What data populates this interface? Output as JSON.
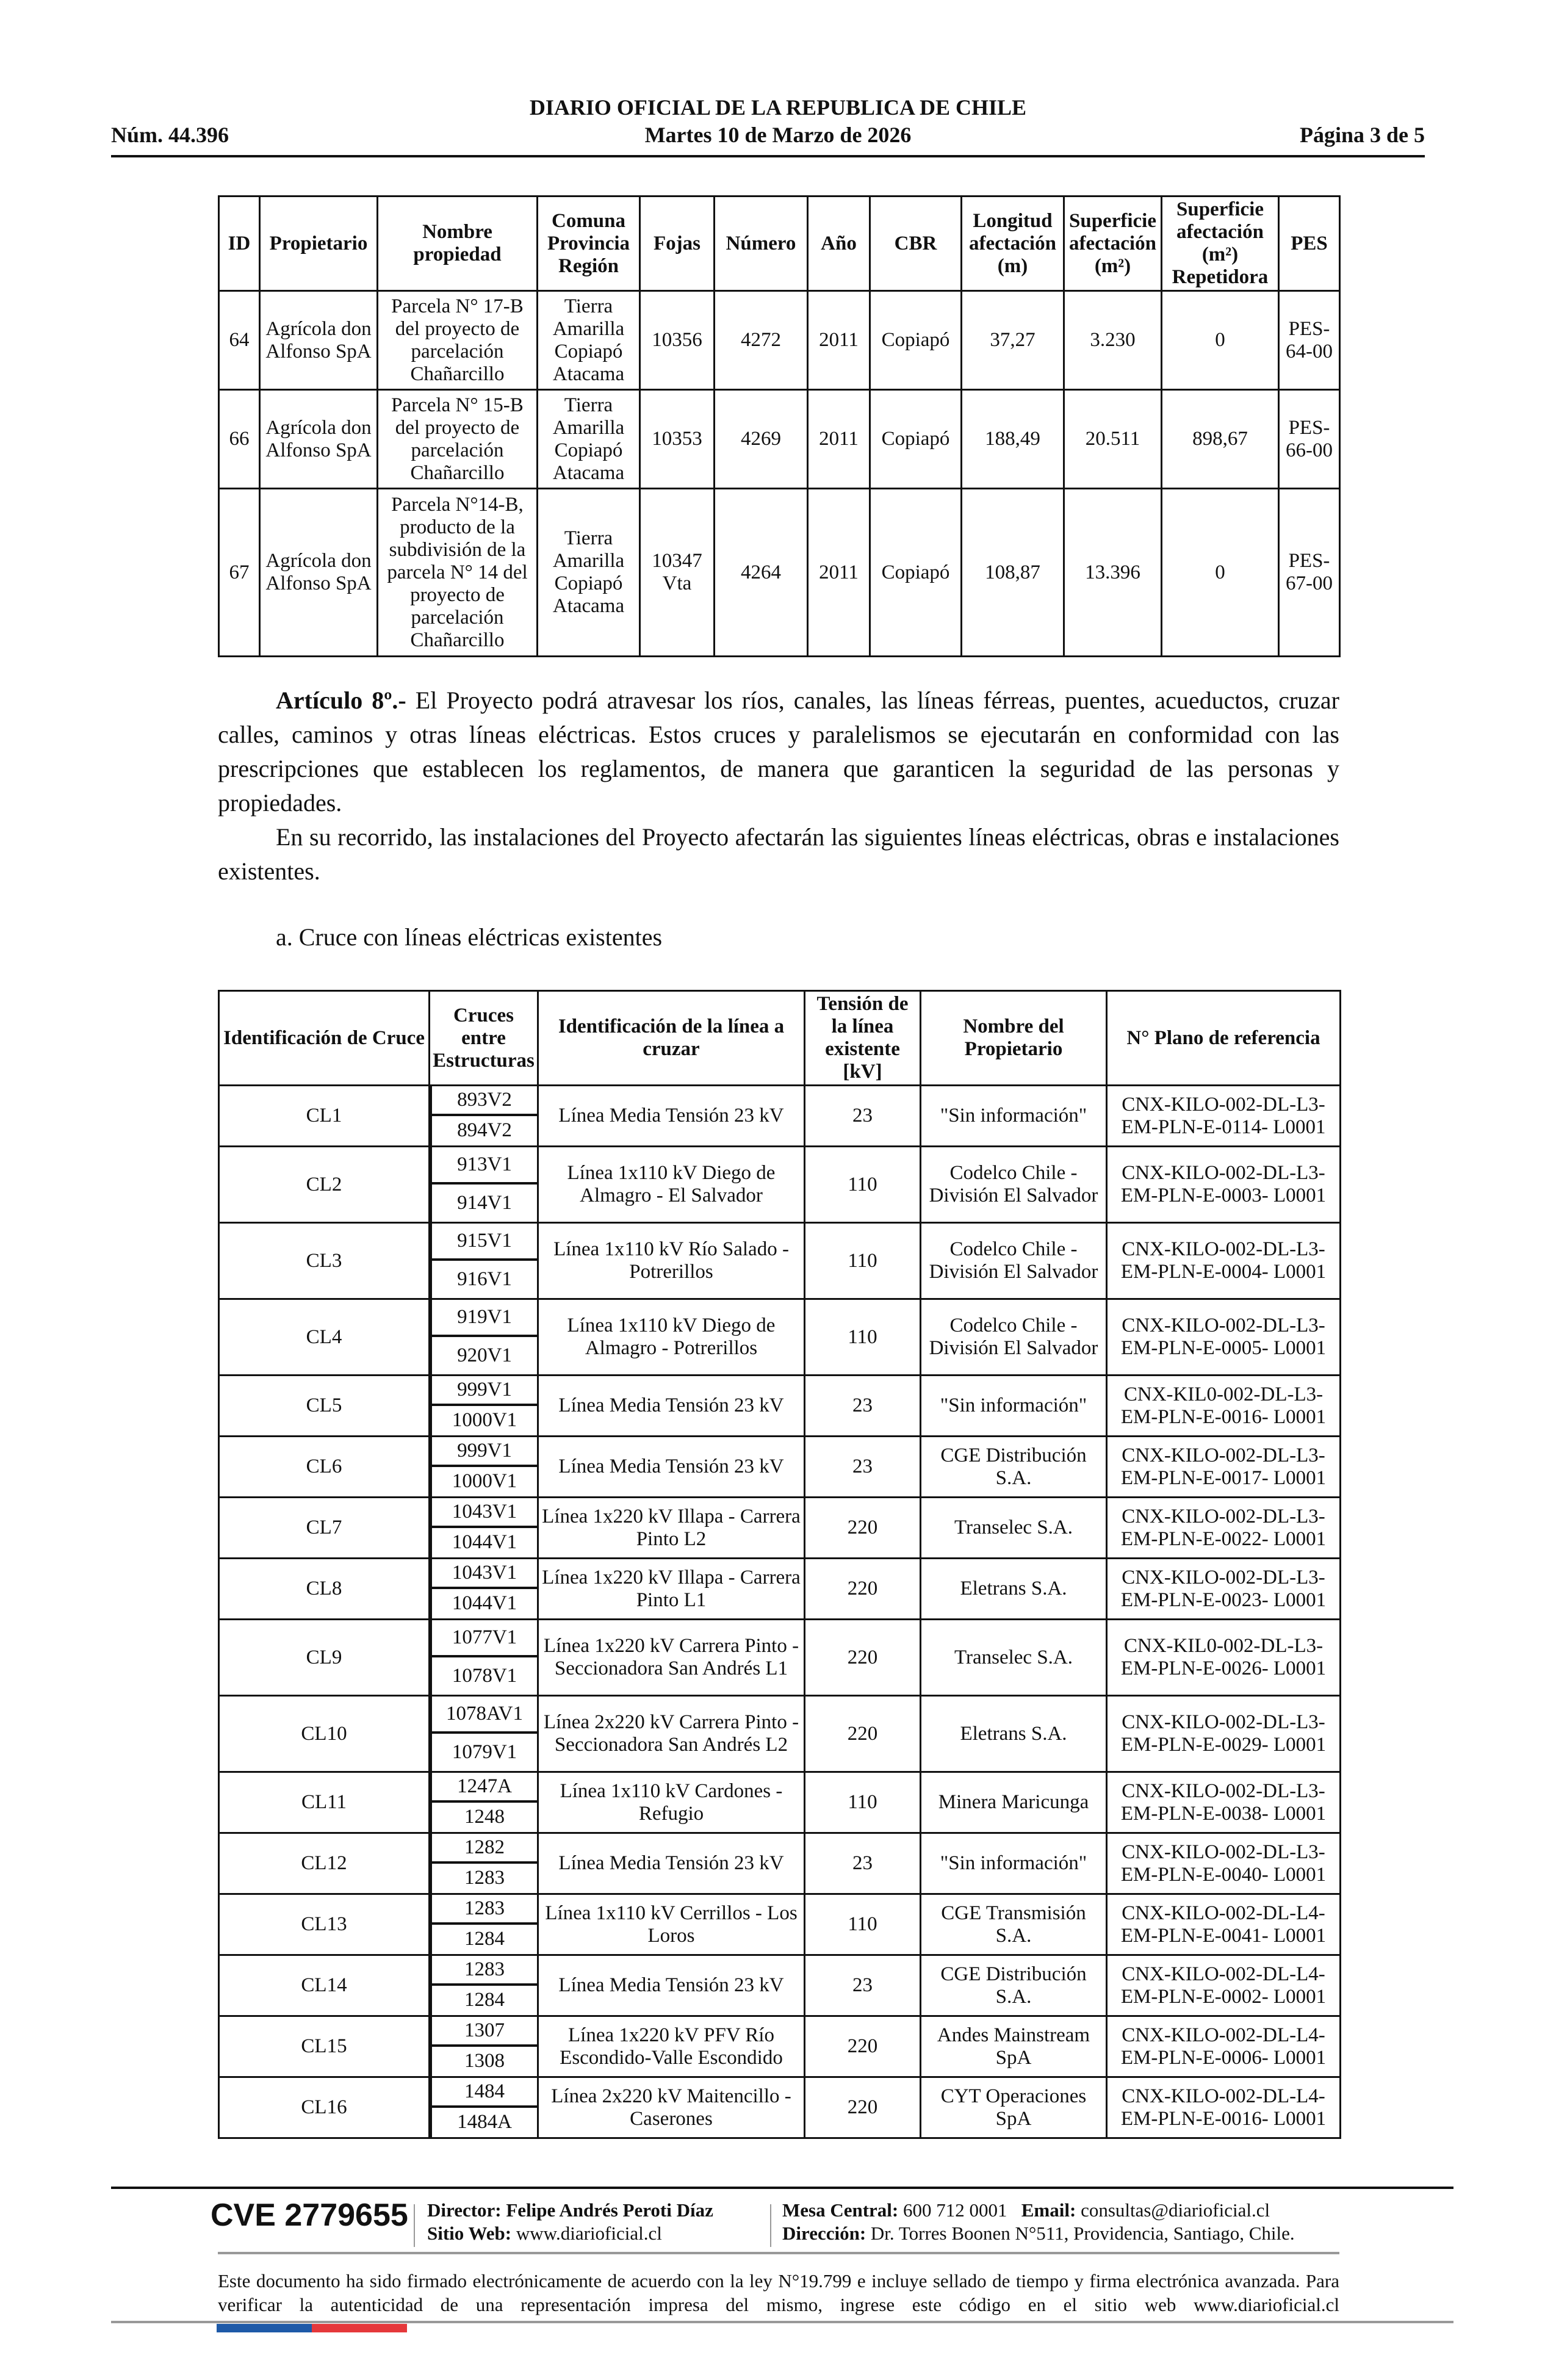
{
  "header": {
    "title": "DIARIO OFICIAL DE LA REPUBLICA DE CHILE",
    "number": "Núm. 44.396",
    "date": "Martes 10 de Marzo de 2026",
    "page": "Página 3 de 5"
  },
  "table1": {
    "headers": [
      "ID",
      "Propietario",
      "Nombre propiedad",
      "Comuna Provincia Región",
      "Fojas",
      "Número",
      "Año",
      "CBR",
      "Longitud afectación (m)",
      "Superficie afectación (m²)",
      "Superficie afectación (m²) Repetidora",
      "PES"
    ],
    "rows": [
      [
        "64",
        "Agrícola don Alfonso SpA",
        "Parcela N° 17-B del proyecto de parcelación Chañarcillo",
        "Tierra Amarilla Copiapó Atacama",
        "10356",
        "4272",
        "2011",
        "Copiapó",
        "37,27",
        "3.230",
        "0",
        "PES-64-00"
      ],
      [
        "66",
        "Agrícola don Alfonso SpA",
        "Parcela N° 15-B del proyecto de parcelación Chañarcillo",
        "Tierra Amarilla Copiapó Atacama",
        "10353",
        "4269",
        "2011",
        "Copiapó",
        "188,49",
        "20.511",
        "898,67",
        "PES-66-00"
      ],
      [
        "67",
        "Agrícola don Alfonso SpA",
        "Parcela N°14-B, producto de la subdivisión de la parcela N° 14 del proyecto de parcelación Chañarcillo",
        "Tierra Amarilla Copiapó Atacama",
        "10347 Vta",
        "4264",
        "2011",
        "Copiapó",
        "108,87",
        "13.396",
        "0",
        "PES-67-00"
      ]
    ]
  },
  "article": {
    "heading": "Artículo 8º.-",
    "p1": " El Proyecto podrá atravesar los ríos, canales, las líneas férreas, puentes, acueductos, cruzar calles, caminos y otras líneas eléctricas. Estos cruces y paralelismos se ejecutarán en conformidad con las prescripciones que establecen los reglamentos, de manera que garanticen la seguridad de las personas y propiedades.",
    "p2": "En su recorrido, las instalaciones del Proyecto afectarán las siguientes líneas eléctricas, obras e instalaciones existentes.",
    "subheading": "a. Cruce con líneas eléctricas existentes"
  },
  "table2": {
    "headers": [
      "Identificación de Cruce",
      "Cruces entre Estructuras",
      "Identificación de la línea a cruzar",
      "Tensión de la línea existente [kV]",
      "Nombre del Propietario",
      "N° Plano de referencia"
    ],
    "rows": [
      {
        "id": "CL1",
        "s1": "893V2",
        "s2": "894V2",
        "line": "Línea Media Tensión 23 kV",
        "kv": "23",
        "owner": "\"Sin información\"",
        "plan": "CNX-KILO-002-DL-L3-EM-PLN-E-0114- L0001"
      },
      {
        "id": "CL2",
        "s1": "913V1",
        "s2": "914V1",
        "line": "Línea 1x110 kV Diego de Almagro - El Salvador",
        "kv": "110",
        "owner": "Codelco Chile - División El Salvador",
        "plan": "CNX-KILO-002-DL-L3-EM-PLN-E-0003- L0001"
      },
      {
        "id": "CL3",
        "s1": "915V1",
        "s2": "916V1",
        "line": "Línea 1x110 kV Río Salado - Potrerillos",
        "kv": "110",
        "owner": "Codelco Chile - División El Salvador",
        "plan": "CNX-KILO-002-DL-L3-EM-PLN-E-0004- L0001"
      },
      {
        "id": "CL4",
        "s1": "919V1",
        "s2": "920V1",
        "line": "Línea 1x110 kV Diego de Almagro - Potrerillos",
        "kv": "110",
        "owner": "Codelco Chile - División El Salvador",
        "plan": "CNX-KILO-002-DL-L3-EM-PLN-E-0005- L0001"
      },
      {
        "id": "CL5",
        "s1": "999V1",
        "s2": "1000V1",
        "line": "Línea Media Tensión 23 kV",
        "kv": "23",
        "owner": "\"Sin información\"",
        "plan": "CNX-KIL0-002-DL-L3-EM-PLN-E-0016- L0001"
      },
      {
        "id": "CL6",
        "s1": "999V1",
        "s2": "1000V1",
        "line": "Línea Media Tensión 23 kV",
        "kv": "23",
        "owner": "CGE Distribución S.A.",
        "plan": "CNX-KILO-002-DL-L3-EM-PLN-E-0017- L0001"
      },
      {
        "id": "CL7",
        "s1": "1043V1",
        "s2": "1044V1",
        "line": "Línea 1x220 kV Illapa - Carrera Pinto L2",
        "kv": "220",
        "owner": "Transelec S.A.",
        "plan": "CNX-KILO-002-DL-L3-EM-PLN-E-0022- L0001"
      },
      {
        "id": "CL8",
        "s1": "1043V1",
        "s2": "1044V1",
        "line": "Línea 1x220 kV Illapa - Carrera Pinto L1",
        "kv": "220",
        "owner": "Eletrans S.A.",
        "plan": "CNX-KILO-002-DL-L3-EM-PLN-E-0023- L0001"
      },
      {
        "id": "CL9",
        "s1": "1077V1",
        "s2": "1078V1",
        "line": "Línea 1x220 kV Carrera Pinto - Seccionadora San Andrés L1",
        "kv": "220",
        "owner": "Transelec S.A.",
        "plan": "CNX-KIL0-002-DL-L3-EM-PLN-E-0026- L0001"
      },
      {
        "id": "CL10",
        "s1": "1078AV1",
        "s2": "1079V1",
        "line": "Línea 2x220 kV Carrera Pinto - Seccionadora San Andrés L2",
        "kv": "220",
        "owner": "Eletrans S.A.",
        "plan": "CNX-KILO-002-DL-L3-EM-PLN-E-0029- L0001"
      },
      {
        "id": "CL11",
        "s1": "1247A",
        "s2": "1248",
        "line": "Línea 1x110 kV Cardones - Refugio",
        "kv": "110",
        "owner": "Minera Maricunga",
        "plan": "CNX-KILO-002-DL-L3-EM-PLN-E-0038- L0001"
      },
      {
        "id": "CL12",
        "s1": "1282",
        "s2": "1283",
        "line": "Línea Media Tensión 23 kV",
        "kv": "23",
        "owner": "\"Sin información\"",
        "plan": "CNX-KILO-002-DL-L3-EM-PLN-E-0040- L0001"
      },
      {
        "id": "CL13",
        "s1": "1283",
        "s2": "1284",
        "line": "Línea 1x110 kV Cerrillos - Los Loros",
        "kv": "110",
        "owner": "CGE Transmisión S.A.",
        "plan": "CNX-KILO-002-DL-L4-EM-PLN-E-0041- L0001"
      },
      {
        "id": "CL14",
        "s1": "1283",
        "s2": "1284",
        "line": "Línea Media Tensión 23 kV",
        "kv": "23",
        "owner": "CGE Distribución S.A.",
        "plan": "CNX-KILO-002-DL-L4-EM-PLN-E-0002- L0001"
      },
      {
        "id": "CL15",
        "s1": "1307",
        "s2": "1308",
        "line": "Línea 1x220 kV PFV Río Escondido-Valle Escondido",
        "kv": "220",
        "owner": "Andes Mainstream SpA",
        "plan": "CNX-KILO-002-DL-L4-EM-PLN-E-0006- L0001"
      },
      {
        "id": "CL16",
        "s1": "1484",
        "s2": "1484A",
        "line": "Línea 2x220 kV Maitencillo - Caserones",
        "kv": "220",
        "owner": "CYT Operaciones SpA",
        "plan": "CNX-KILO-002-DL-L4-EM-PLN-E-0016- L0001"
      }
    ]
  },
  "footer": {
    "cve": "CVE 2779655",
    "director_label": "Director:",
    "director": " Felipe Andrés Peroti Díaz",
    "web_label": "Sitio Web:",
    "web": " www.diarioficial.cl",
    "mesa_label": "Mesa Central:",
    "mesa": " 600 712 0001",
    "email_label": "Email:",
    "email": " consultas@diarioficial.cl",
    "address_label": "Dirección:",
    "address": " Dr. Torres Boonen N°511, Providencia, Santiago, Chile.",
    "legal": "Este documento ha sido firmado electrónicamente de acuerdo con la ley N°19.799 e incluye sellado de tiempo y firma electrónica avanzada. Para verificar la autenticidad de una representación impresa del mismo, ingrese este código en el sitio web www.diarioficial.cl",
    "flag_colors": [
      "#1e5aa8",
      "#e5383b"
    ]
  }
}
